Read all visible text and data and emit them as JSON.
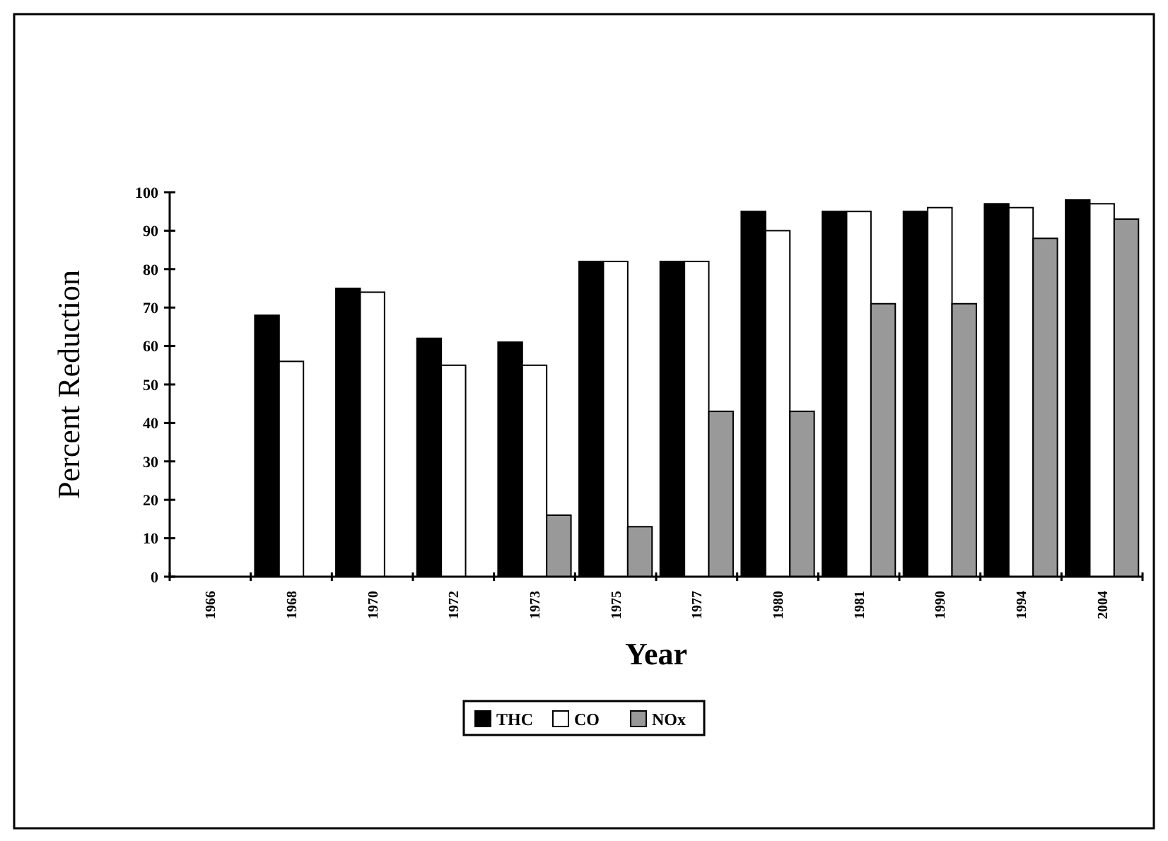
{
  "chart_data": {
    "type": "bar",
    "xlabel": "Year",
    "ylabel": "Percent Reduction",
    "categories": [
      "1966",
      "1968",
      "1970",
      "1972",
      "1973",
      "1975",
      "1977",
      "1980",
      "1981",
      "1990",
      "1994",
      "2004"
    ],
    "series": [
      {
        "name": "THC",
        "color": "#000000",
        "values": [
          0,
          68,
          75,
          62,
          61,
          82,
          82,
          95,
          95,
          95,
          97,
          98
        ]
      },
      {
        "name": "CO",
        "color": "#ffffff",
        "values": [
          0,
          56,
          74,
          55,
          55,
          82,
          82,
          90,
          95,
          96,
          96,
          97
        ]
      },
      {
        "name": "NOx",
        "color": "#999999",
        "values": [
          0,
          0,
          0,
          0,
          16,
          13,
          43,
          43,
          71,
          71,
          88,
          93
        ]
      }
    ],
    "ylim": [
      0,
      100
    ],
    "yticks": [
      0,
      10,
      20,
      30,
      40,
      50,
      60,
      70,
      80,
      90,
      100
    ],
    "grid": false,
    "legend": "bottom"
  }
}
